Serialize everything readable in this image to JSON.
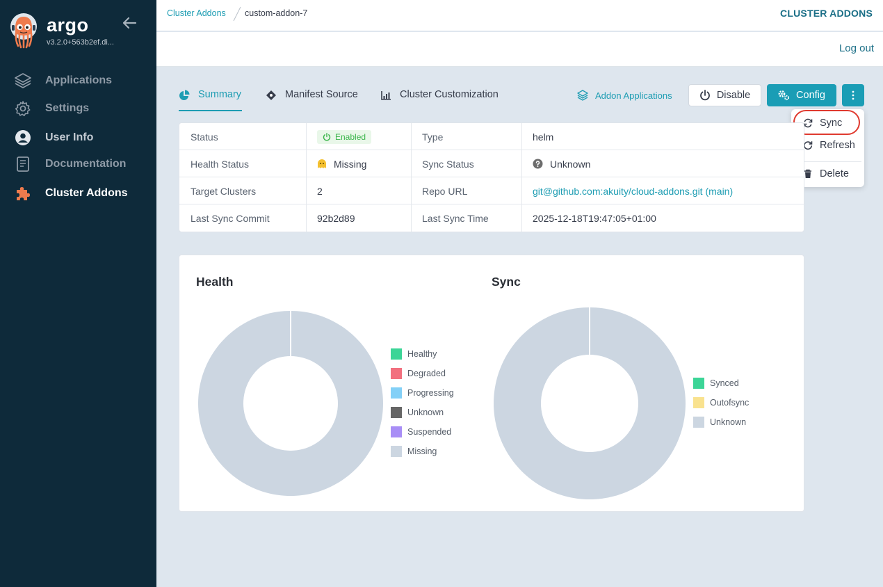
{
  "app": {
    "name": "argo",
    "version": "v3.2.0+563b2ef.di..."
  },
  "sidebar": {
    "items": [
      {
        "label": "Applications",
        "icon": "layers-icon",
        "active": false
      },
      {
        "label": "Settings",
        "icon": "gear-icon",
        "active": false
      },
      {
        "label": "User Info",
        "icon": "user-circle-icon",
        "active": false
      },
      {
        "label": "Documentation",
        "icon": "book-icon",
        "active": false
      },
      {
        "label": "Cluster Addons",
        "icon": "puzzle-icon",
        "active": true
      }
    ]
  },
  "breadcrumb": {
    "parent": "Cluster Addons",
    "current": "custom-addon-7"
  },
  "header": {
    "title": "CLUSTER ADDONS",
    "logout": "Log out"
  },
  "tabs": [
    {
      "label": "Summary",
      "icon": "pie-chart-icon",
      "active": true
    },
    {
      "label": "Manifest Source",
      "icon": "diamond-icon",
      "active": false
    },
    {
      "label": "Cluster Customization",
      "icon": "bar-chart-icon",
      "active": false
    }
  ],
  "actions": {
    "addon_applications": "Addon Applications",
    "disable": "Disable",
    "config": "Config"
  },
  "menu": {
    "items": [
      "Sync",
      "Refresh",
      "Delete"
    ]
  },
  "info": {
    "status_key": "Status",
    "status_val": "Enabled",
    "type_key": "Type",
    "type_val": "helm",
    "health_key": "Health Status",
    "health_val": "Missing",
    "sync_key": "Sync Status",
    "sync_val": "Unknown",
    "targets_key": "Target Clusters",
    "targets_val": "2",
    "repo_key": "Repo URL",
    "repo_val": "git@github.com:akuity/cloud-addons.git (main)",
    "commit_key": "Last Sync Commit",
    "commit_val": "92b2d89",
    "time_key": "Last Sync Time",
    "time_val": "2025-12-18T19:47:05+01:00"
  },
  "chart_data": [
    {
      "type": "pie",
      "title": "Health",
      "series": [
        {
          "name": "Healthy",
          "value": 0,
          "color": "#3cd597"
        },
        {
          "name": "Degraded",
          "value": 0,
          "color": "#f2707f"
        },
        {
          "name": "Progressing",
          "value": 0,
          "color": "#83d0f7"
        },
        {
          "name": "Unknown",
          "value": 0,
          "color": "#666666"
        },
        {
          "name": "Suspended",
          "value": 0,
          "color": "#a88ef6"
        },
        {
          "name": "Missing",
          "value": 2,
          "color": "#ccd6e1"
        }
      ],
      "legend": "right"
    },
    {
      "type": "pie",
      "title": "Sync",
      "series": [
        {
          "name": "Synced",
          "value": 0,
          "color": "#3cd597"
        },
        {
          "name": "Outofsync",
          "value": 0,
          "color": "#f9e28f"
        },
        {
          "name": "Unknown",
          "value": 2,
          "color": "#ccd6e1"
        }
      ],
      "legend": "right"
    }
  ]
}
